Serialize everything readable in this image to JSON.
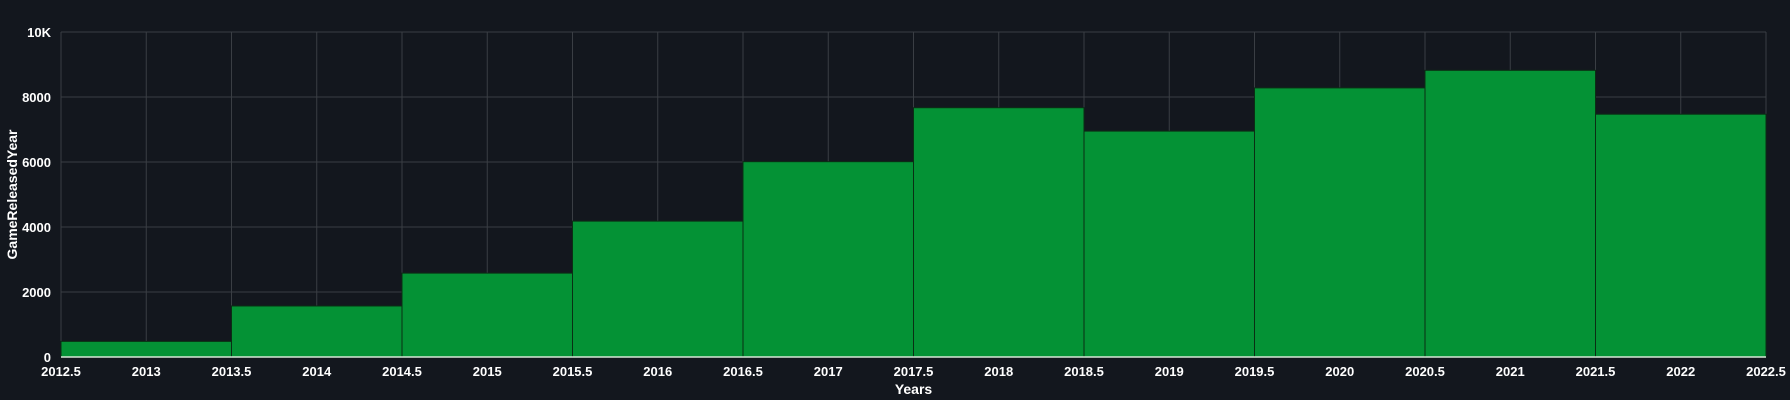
{
  "chart_data": {
    "type": "bar",
    "xlabel": "Years",
    "ylabel": "GameReleasedYear",
    "categories": [
      2013,
      2014,
      2015,
      2016,
      2017,
      2018,
      2019,
      2020,
      2021,
      2022
    ],
    "values": [
      480,
      1570,
      2580,
      4180,
      6010,
      7670,
      6950,
      8280,
      8820,
      7470
    ],
    "xlim": [
      2012.5,
      2022.5
    ],
    "ylim": [
      0,
      10000
    ],
    "x_ticks": [
      "2012.5",
      "2013",
      "2013.5",
      "2014",
      "2014.5",
      "2015",
      "2015.5",
      "2016",
      "2016.5",
      "2017",
      "2017.5",
      "2018",
      "2018.5",
      "2019",
      "2019.5",
      "2020",
      "2020.5",
      "2021",
      "2021.5",
      "2022",
      "2022.5"
    ],
    "x_tick_values": [
      2012.5,
      2013,
      2013.5,
      2014,
      2014.5,
      2015,
      2015.5,
      2016,
      2016.5,
      2017,
      2017.5,
      2018,
      2018.5,
      2019,
      2019.5,
      2020,
      2020.5,
      2021,
      2021.5,
      2022,
      2022.5
    ],
    "y_ticks": [
      "0",
      "2000",
      "4000",
      "6000",
      "8000",
      "10K"
    ],
    "y_tick_values": [
      0,
      2000,
      4000,
      6000,
      8000,
      10000
    ],
    "bar_color": "#049235",
    "background": "#13171e",
    "grid": true
  }
}
